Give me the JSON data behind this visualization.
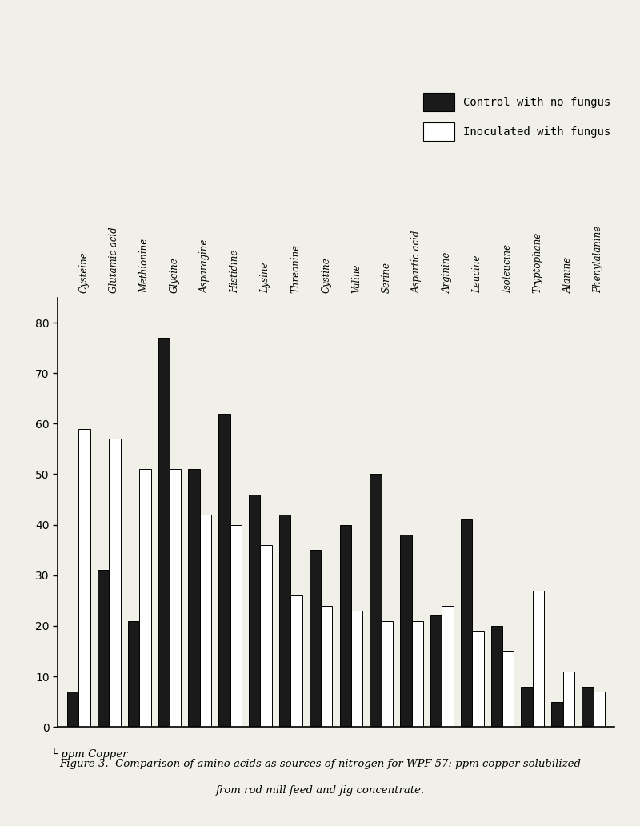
{
  "categories": [
    "Cysteine",
    "Glutamic acid",
    "Methionine",
    "Glycine",
    "Asparagine",
    "Histidine",
    "Lysine",
    "Threonine",
    "Cystine",
    "Valine",
    "Serine",
    "Aspartic acid",
    "Arginine",
    "Leucine",
    "Isoleucine",
    "Tryptophane",
    "Alanine",
    "Phenylalanine"
  ],
  "control_no_fungus": [
    7,
    31,
    21,
    77,
    51,
    62,
    46,
    42,
    35,
    40,
    50,
    38,
    22,
    41,
    20,
    8,
    5,
    8
  ],
  "inoculated_fungus": [
    59,
    57,
    51,
    51,
    42,
    40,
    36,
    26,
    24,
    23,
    21,
    21,
    24,
    19,
    15,
    27,
    11,
    7
  ],
  "control_color": "#1a1a1a",
  "inoculated_color": "#ffffff",
  "bar_edgecolor": "#000000",
  "ylim": [
    0,
    85
  ],
  "yticks": [
    0,
    10,
    20,
    30,
    40,
    50,
    60,
    70,
    80
  ],
  "legend_control": "Control with no fungus",
  "legend_inoculated": "Inoculated with fungus",
  "caption_line1": "Figure 3.  Comparison of amino acids as sources of nitrogen for WPF-57: ppm copper solubilized",
  "caption_line2": "from rod mill feed and jig concentrate.",
  "background_color": "#f0efe8",
  "bar_width": 0.38
}
